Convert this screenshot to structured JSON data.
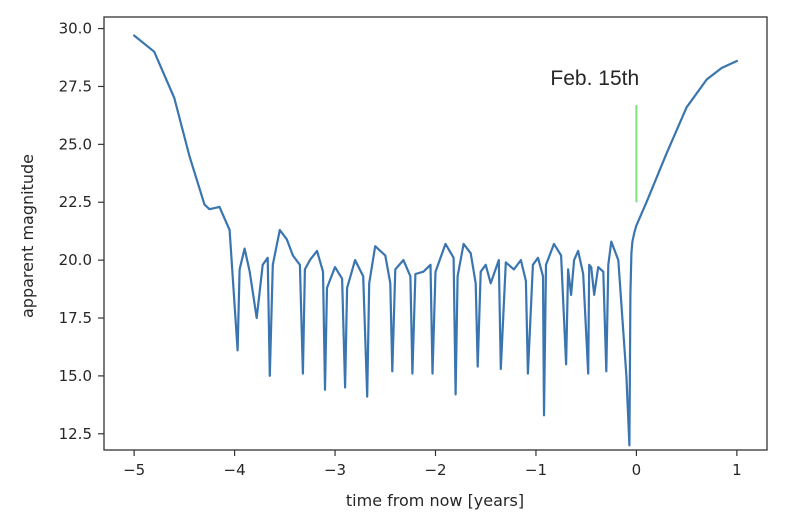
{
  "chart_data": {
    "type": "line",
    "title": "",
    "xlabel": "time from now [years]",
    "ylabel": "apparent magnitude",
    "xlim": [
      -5.3,
      1.3
    ],
    "ylim": [
      11.8,
      30.5
    ],
    "xticks": [
      -5,
      -4,
      -3,
      -2,
      -1,
      0,
      1
    ],
    "xtick_labels": [
      "−5",
      "−4",
      "−3",
      "−2",
      "−1",
      "0",
      "1"
    ],
    "yticks": [
      12.5,
      15.0,
      17.5,
      20.0,
      22.5,
      25.0,
      27.5,
      30.0
    ],
    "ytick_labels": [
      "12.5",
      "15.0",
      "17.5",
      "20.0",
      "22.5",
      "25.0",
      "27.5",
      "30.0"
    ],
    "grid": false,
    "series": [
      {
        "color": "#3a75b0",
        "x": [
          -5.0,
          -4.8,
          -4.6,
          -4.45,
          -4.3,
          -4.25,
          -4.15,
          -4.05,
          -3.97,
          -3.95,
          -3.9,
          -3.85,
          -3.78,
          -3.72,
          -3.67,
          -3.65,
          -3.62,
          -3.55,
          -3.48,
          -3.42,
          -3.35,
          -3.32,
          -3.3,
          -3.25,
          -3.18,
          -3.12,
          -3.1,
          -3.08,
          -3.0,
          -2.93,
          -2.9,
          -2.88,
          -2.8,
          -2.72,
          -2.68,
          -2.66,
          -2.6,
          -2.5,
          -2.45,
          -2.43,
          -2.4,
          -2.32,
          -2.25,
          -2.23,
          -2.2,
          -2.12,
          -2.05,
          -2.03,
          -2.0,
          -1.9,
          -1.82,
          -1.8,
          -1.78,
          -1.72,
          -1.65,
          -1.6,
          -1.58,
          -1.55,
          -1.5,
          -1.45,
          -1.37,
          -1.35,
          -1.3,
          -1.22,
          -1.15,
          -1.1,
          -1.08,
          -1.03,
          -0.98,
          -0.93,
          -0.92,
          -0.9,
          -0.82,
          -0.75,
          -0.7,
          -0.68,
          -0.65,
          -0.62,
          -0.58,
          -0.53,
          -0.48,
          -0.47,
          -0.45,
          -0.42,
          -0.38,
          -0.33,
          -0.3,
          -0.28,
          -0.25,
          -0.18,
          -0.1,
          -0.07,
          -0.06,
          -0.05,
          -0.04,
          -0.02,
          0.0,
          0.1,
          0.3,
          0.5,
          0.7,
          0.85,
          1.0
        ],
        "y": [
          29.7,
          29.0,
          27.0,
          24.5,
          22.4,
          22.2,
          22.3,
          21.3,
          16.1,
          19.6,
          20.5,
          19.5,
          17.5,
          19.8,
          20.1,
          15.0,
          19.8,
          21.3,
          20.9,
          20.2,
          19.8,
          15.1,
          19.6,
          20.0,
          20.4,
          19.5,
          14.4,
          18.8,
          19.7,
          19.2,
          14.5,
          18.8,
          20.0,
          19.3,
          14.1,
          19.0,
          20.6,
          20.2,
          19.0,
          15.2,
          19.6,
          20.0,
          19.3,
          15.1,
          19.4,
          19.5,
          19.8,
          15.1,
          19.5,
          20.7,
          20.1,
          14.2,
          19.3,
          20.7,
          20.3,
          19.0,
          15.4,
          19.5,
          19.8,
          19.0,
          20.0,
          15.3,
          19.9,
          19.6,
          20.0,
          19.1,
          15.1,
          19.8,
          20.1,
          19.3,
          13.3,
          19.8,
          20.7,
          20.2,
          15.5,
          19.6,
          18.5,
          20.0,
          20.4,
          19.4,
          15.1,
          19.8,
          19.7,
          18.5,
          19.7,
          19.5,
          15.2,
          19.8,
          20.8,
          20.0,
          15.0,
          12.0,
          18.5,
          20.3,
          20.8,
          21.2,
          21.5,
          22.5,
          24.6,
          26.6,
          27.8,
          28.3,
          28.6
        ]
      }
    ],
    "annotations": [
      {
        "text": "Feb. 15th",
        "x": 0.0,
        "y_from": 22.5,
        "y_to": 26.7,
        "color": "#7fe07f"
      }
    ]
  }
}
